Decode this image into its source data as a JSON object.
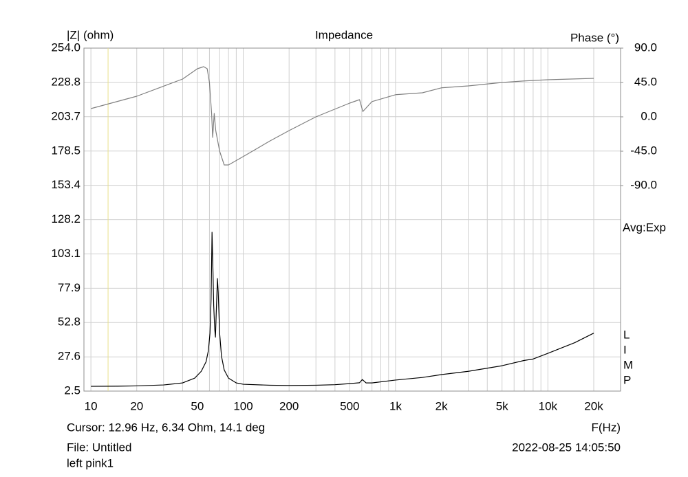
{
  "chart_data": {
    "type": "line",
    "title": "Impedance",
    "y_label": "|Z| (ohm)",
    "y2_label": "Phase (°)",
    "x_label": "F(Hz)",
    "averaging": "Avg:Exp",
    "watermark": "LIMP",
    "cursor_text": "Cursor: 12.96 Hz, 6.34 Ohm, 14.1 deg",
    "cursor_x": 12.96,
    "cursor_color": "#e8e08a",
    "file_text": "File: Untitled",
    "note": "left pink1",
    "timestamp": "2022-08-25 14:05:50",
    "log_x": true,
    "grid": true,
    "xlim": [
      9,
      30000
    ],
    "xticks": [
      10,
      20,
      50,
      100,
      200,
      500,
      {
        "value": 1000,
        "label": "1k"
      },
      {
        "value": 2000,
        "label": "2k"
      },
      {
        "value": 5000,
        "label": "5k"
      },
      {
        "value": 10000,
        "label": "10k"
      },
      {
        "value": 20000,
        "label": "20k"
      }
    ],
    "xminor": [
      30,
      40,
      60,
      70,
      80,
      90,
      300,
      400,
      600,
      700,
      800,
      900,
      3000,
      4000,
      6000,
      7000,
      8000,
      9000
    ],
    "ylim": [
      2.5,
      254.0
    ],
    "yticks": [
      2.5,
      27.6,
      52.8,
      77.9,
      103.1,
      128.2,
      153.4,
      178.5,
      203.7,
      228.8,
      {
        "value": 254,
        "label": "254.0"
      }
    ],
    "y2lim": [
      -359.1,
      90
    ],
    "y2ticks": [
      {
        "value": 90,
        "label": "90.0"
      },
      {
        "value": 45,
        "label": "45.0"
      },
      {
        "value": 0,
        "label": "0.0"
      },
      {
        "value": -45,
        "label": "-45.0"
      },
      {
        "value": -90,
        "label": "-90.0"
      }
    ],
    "series": [
      {
        "color": "#000000",
        "x": [
          10,
          15,
          20,
          30,
          40,
          48,
          53,
          57,
          59,
          60.5,
          61.5,
          62.4,
          63.3,
          64,
          65,
          65.7,
          66.5,
          67.7,
          68.5,
          70,
          72,
          75,
          80,
          90,
          100,
          150,
          200,
          300,
          400,
          500,
          580,
          605,
          640,
          700,
          1000,
          1500,
          2000,
          3000,
          5000,
          7000,
          8000,
          10000,
          15000,
          20000
        ],
        "values": [
          6.0,
          6.1,
          6.3,
          7.0,
          8.5,
          12,
          17,
          24,
          32,
          45,
          70,
          119,
          90,
          65,
          48,
          42,
          60,
          85,
          75,
          45,
          28,
          18,
          12,
          8.5,
          7.5,
          6.8,
          6.6,
          6.8,
          7.2,
          8.0,
          8.6,
          11,
          8.5,
          8.5,
          10.6,
          12.5,
          14.6,
          17,
          21.1,
          25,
          26,
          30.2,
          38,
          45
        ]
      },
      {
        "color": "#808080",
        "axis": "y2",
        "x": [
          10,
          20,
          40,
          50,
          55,
          58,
          60,
          62,
          63,
          64.5,
          66,
          70,
          75,
          80,
          100,
          150,
          200,
          300,
          500,
          580,
          610,
          700,
          1000,
          1500,
          2000,
          3000,
          5000,
          7000,
          10000,
          20000
        ],
        "values": [
          10.8,
          27,
          49.5,
          63,
          65.7,
          63,
          45,
          4.5,
          -27,
          4.5,
          -18,
          -45,
          -63,
          -63,
          -52,
          -31.5,
          -18,
          0,
          18,
          22.5,
          7,
          20,
          29,
          31.5,
          38,
          40.5,
          45,
          47,
          48.6,
          50.4
        ]
      }
    ]
  }
}
